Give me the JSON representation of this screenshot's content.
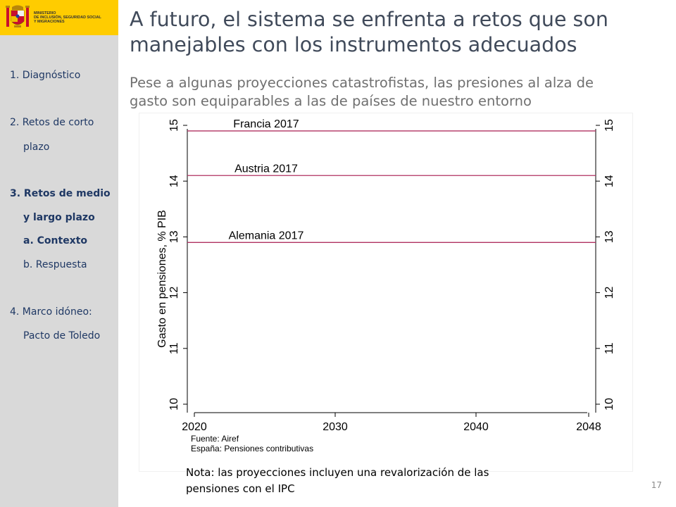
{
  "colors": {
    "sidebar_bg": "#d9d9d9",
    "logo_band": "#ffcc00",
    "nav_text": "#1f3864",
    "reference_line": "#b03060"
  },
  "header": {
    "ministry_lines": [
      "MINISTERIO",
      "DE INCLUSIÓN, SEGURIDAD SOCIAL",
      "Y MIGRACIONES"
    ],
    "logo_icon": "spain-coat-of-arms-icon"
  },
  "sidebar": {
    "items": [
      {
        "lines": [
          "1. Diagnóstico"
        ]
      },
      {
        "lines": [
          "2. Retos de corto",
          "plazo"
        ]
      },
      {
        "lines": [
          "3. Retos de medio",
          "y largo plazo"
        ],
        "active": true
      },
      {
        "lines": [
          "a. Contexto"
        ],
        "active": true
      },
      {
        "lines": [
          "b. Respuesta"
        ]
      },
      {
        "lines": [
          "4. Marco idóneo:",
          "Pacto de Toledo"
        ]
      }
    ]
  },
  "slide": {
    "title_lines": [
      "A futuro, el sistema se enfrenta a retos que son",
      "manejables con los instrumentos adecuados"
    ],
    "subtitle_lines": [
      "Pese a algunas proyecciones catastrofistas, las presiones al alza de",
      "gasto son equiparables a las de países de nuestro entorno"
    ],
    "note_lines": [
      "Nota: las proyecciones incluyen una revalorización de las",
      "pensiones con el IPC"
    ],
    "page_number": "17"
  },
  "chart_data": {
    "type": "line",
    "ylabel": "Gasto en pensiones, % PIB",
    "xlabel": "",
    "xlim": [
      2020,
      2048
    ],
    "ylim": [
      10,
      15
    ],
    "x_ticks": [
      "2020",
      "2030",
      "2040",
      "2048"
    ],
    "y_ticks": [
      "10",
      "11",
      "12",
      "13",
      "14",
      "15"
    ],
    "grid": false,
    "reference_lines": [
      {
        "label": "Francia 2017",
        "value": 14.9
      },
      {
        "label": "Austria 2017",
        "value": 14.1
      },
      {
        "label": "Alemania 2017",
        "value": 12.9
      }
    ],
    "series": [],
    "source_lines": [
      "Fuente: Airef",
      "España: Pensiones contributivas"
    ]
  }
}
